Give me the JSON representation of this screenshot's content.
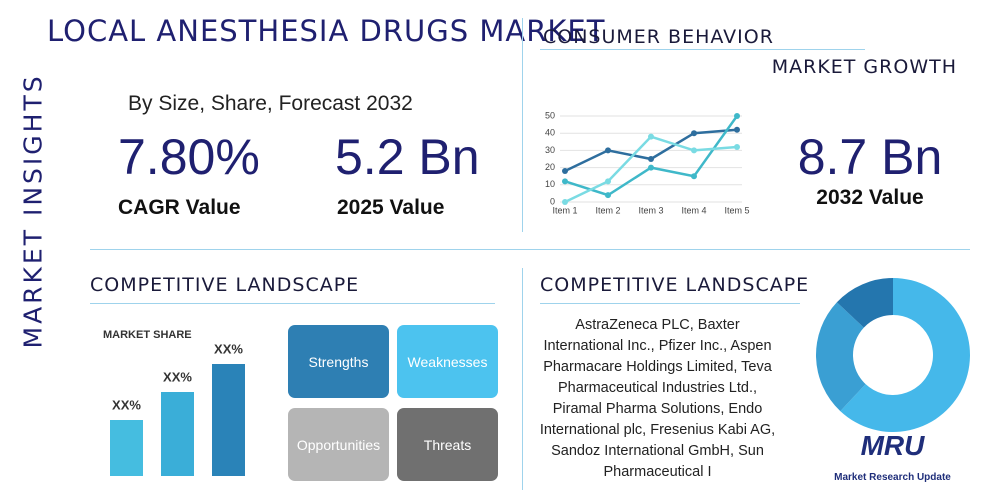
{
  "header": {
    "title": "LOCAL ANESTHESIA DRUGS MARKET",
    "side_label": "MARKET INSIGHTS",
    "subtitle": "By Size, Share, Forecast 2032"
  },
  "stats": [
    {
      "value": "7.80%",
      "label": "CAGR Value"
    },
    {
      "value": "5.2 Bn",
      "label": "2025 Value"
    },
    {
      "value": "8.7 Bn",
      "label": "2032 Value"
    }
  ],
  "consumer": {
    "title": "CONSUMER BEHAVIOR",
    "subtitle": "MARKET GROWTH"
  },
  "landscape_left": {
    "title": "COMPETITIVE LANDSCAPE",
    "swot": [
      "Strengths",
      "Weaknesses",
      "Opportunities",
      "Threats"
    ]
  },
  "landscape_right": {
    "title": "COMPETITIVE LANDSCAPE",
    "text": "AstraZeneca PLC, Baxter International Inc., Pfizer Inc., Aspen Pharmacare Holdings Limited, Teva Pharmaceutical Industries Ltd., Piramal Pharma Solutions, Endo International plc, Fresenius Kabi AG, Sandoz International GmbH, Sun Pharmaceutical I"
  },
  "logo": {
    "mark": "MRU",
    "name": "Market Research Update"
  },
  "chart_data": [
    {
      "type": "line",
      "categories": [
        "Item 1",
        "Item 2",
        "Item 3",
        "Item 4",
        "Item 5"
      ],
      "series": [
        {
          "color": "#2e6e9e",
          "values": [
            18,
            30,
            25,
            40,
            42
          ]
        },
        {
          "color": "#3fb8c9",
          "values": [
            12,
            4,
            20,
            15,
            50
          ]
        },
        {
          "color": "#7adbe3",
          "values": [
            0,
            12,
            38,
            30,
            32
          ]
        }
      ],
      "ylim": [
        0,
        50
      ],
      "yticks": [
        0,
        10,
        20,
        30,
        40,
        50
      ]
    },
    {
      "type": "bar",
      "title": "MARKET SHARE",
      "values": [
        20,
        30,
        40
      ],
      "value_labels": [
        "XX%",
        "XX%",
        "XX%"
      ],
      "colors": [
        "#45bde0",
        "#3aaed8",
        "#2a83b8"
      ]
    },
    {
      "type": "pie",
      "values": [
        62,
        25,
        13
      ],
      "colors": [
        "#45b8ea",
        "#3a9fd3",
        "#2476ae"
      ]
    }
  ]
}
